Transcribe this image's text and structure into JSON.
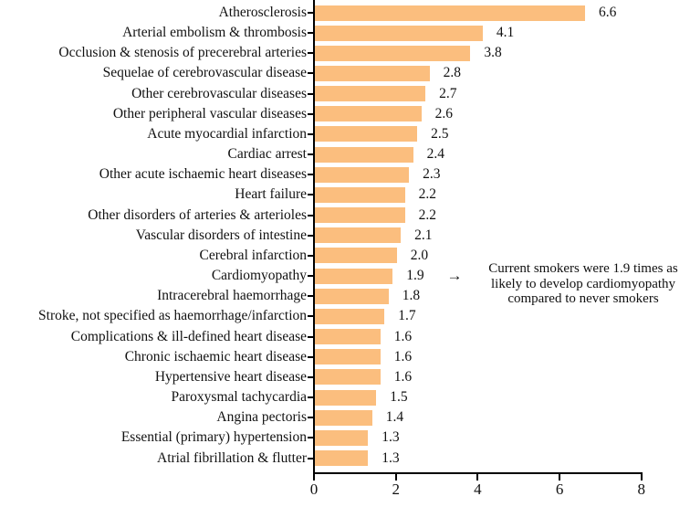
{
  "chart_data": {
    "type": "bar",
    "orientation": "horizontal",
    "title": "",
    "xlabel": "",
    "ylabel": "",
    "xlim": [
      0,
      8
    ],
    "xticks": [
      "0",
      "2",
      "4",
      "6",
      "8"
    ],
    "xtick_values": [
      0,
      2,
      4,
      6,
      8
    ],
    "grid": false,
    "bar_color": "#FBBE7E",
    "axis_color": "#000000",
    "categories": [
      "Atherosclerosis",
      "Arterial embolism & thrombosis",
      "Occlusion & stenosis of precerebral arteries",
      "Sequelae of cerebrovascular disease",
      "Other cerebrovascular diseases",
      "Other peripheral vascular diseases",
      "Acute myocardial infarction",
      "Cardiac arrest",
      "Other acute ischaemic heart diseases",
      "Heart failure",
      "Other disorders of arteries & arterioles",
      "Vascular disorders of intestine",
      "Cerebral infarction",
      "Cardiomyopathy",
      "Intracerebral haemorrhage",
      "Stroke, not specified as haemorrhage/infarction",
      "Complications & ill-defined heart disease",
      "Chronic ischaemic heart disease",
      "Hypertensive heart disease",
      "Paroxysmal tachycardia",
      "Angina pectoris",
      "Essential (primary) hypertension",
      "Atrial fibrillation & flutter"
    ],
    "values": [
      6.6,
      4.1,
      3.8,
      2.8,
      2.7,
      2.6,
      2.5,
      2.4,
      2.3,
      2.2,
      2.2,
      2.1,
      2.0,
      1.9,
      1.8,
      1.7,
      1.6,
      1.6,
      1.6,
      1.5,
      1.4,
      1.3,
      1.3
    ],
    "value_labels": [
      "6.6",
      "4.1",
      "3.8",
      "2.8",
      "2.7",
      "2.6",
      "2.5",
      "2.4",
      "2.3",
      "2.2",
      "2.2",
      "2.1",
      "2.0",
      "1.9",
      "1.8",
      "1.7",
      "1.6",
      "1.6",
      "1.6",
      "1.5",
      "1.4",
      "1.3",
      "1.3"
    ]
  },
  "annotation": {
    "arrow": "→",
    "line1": "Current smokers were 1.9 times as",
    "line2": "likely to develop cardiomyopathy",
    "line3": "compared to never smokers"
  }
}
